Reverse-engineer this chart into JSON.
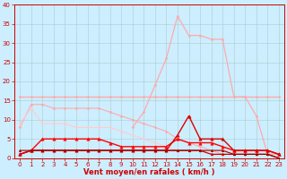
{
  "bg_color": "#cceeff",
  "grid_color": "#aacccc",
  "xlabel": "Vent moyen/en rafales ( km/h )",
  "xlabel_color": "#cc0000",
  "xlabel_fontsize": 6,
  "ylim": [
    0,
    40
  ],
  "xlim": [
    -0.5,
    23.5
  ],
  "yticks": [
    0,
    5,
    10,
    15,
    20,
    25,
    30,
    35,
    40
  ],
  "xticks": [
    0,
    1,
    2,
    3,
    4,
    5,
    6,
    7,
    8,
    9,
    10,
    11,
    12,
    13,
    14,
    15,
    16,
    17,
    18,
    19,
    20,
    21,
    22,
    23
  ],
  "lines": [
    {
      "x": [
        0,
        1,
        2,
        3,
        4,
        5,
        6,
        7,
        8,
        9,
        10,
        11,
        12,
        13,
        14,
        15,
        16,
        17,
        18,
        19,
        20,
        21,
        22,
        23
      ],
      "y": [
        8,
        14,
        14,
        13,
        13,
        13,
        13,
        13,
        12,
        11,
        10,
        9,
        8,
        7,
        5,
        4,
        3,
        2,
        1,
        1,
        1,
        1,
        1,
        1
      ],
      "color": "#ffaaaa",
      "lw": 0.8,
      "marker": "D",
      "ms": 1.5
    },
    {
      "x": [
        0,
        1,
        2,
        3,
        4,
        5,
        6,
        7,
        8,
        9,
        10,
        11,
        12,
        13,
        14,
        15,
        16,
        17,
        18,
        19,
        20,
        21,
        22,
        23
      ],
      "y": [
        16,
        16,
        16,
        16,
        16,
        16,
        16,
        16,
        16,
        16,
        16,
        16,
        16,
        16,
        16,
        16,
        16,
        16,
        16,
        16,
        16,
        16,
        16,
        16
      ],
      "color": "#ffaaaa",
      "lw": 1.0,
      "marker": "D",
      "ms": 1.5
    },
    {
      "x": [
        0,
        1,
        2,
        3,
        4,
        5,
        6,
        7,
        8,
        9,
        10,
        11,
        12,
        13,
        14,
        15,
        16,
        17,
        18,
        19,
        20,
        21,
        22,
        23
      ],
      "y": [
        9,
        13,
        9,
        9,
        9,
        8,
        8,
        8,
        8,
        7,
        6,
        5,
        4,
        3,
        2,
        2,
        2,
        2,
        2,
        2,
        1,
        1,
        1,
        0
      ],
      "color": "#ffcccc",
      "lw": 0.8,
      "marker": "D",
      "ms": 1.5
    },
    {
      "x": [
        10,
        11,
        12,
        13,
        14,
        15,
        16,
        17,
        18,
        19,
        20,
        21,
        22,
        23
      ],
      "y": [
        8,
        12,
        19,
        26,
        37,
        32,
        32,
        31,
        31,
        16,
        16,
        11,
        1,
        1
      ],
      "color": "#ffaaaa",
      "lw": 0.9,
      "marker": "D",
      "ms": 1.5
    },
    {
      "x": [
        0,
        1,
        2,
        3,
        4,
        5,
        6,
        7,
        8,
        9,
        10,
        11,
        12,
        13,
        14,
        15,
        16,
        17,
        18,
        19,
        20,
        21,
        22,
        23
      ],
      "y": [
        1,
        2,
        2,
        2,
        2,
        2,
        2,
        2,
        2,
        2,
        2,
        2,
        2,
        2,
        2,
        2,
        2,
        1,
        1,
        1,
        1,
        1,
        1,
        0
      ],
      "color": "#cc0000",
      "lw": 0.9,
      "marker": "^",
      "ms": 2.0
    },
    {
      "x": [
        0,
        1,
        2,
        3,
        4,
        5,
        6,
        7,
        8,
        9,
        10,
        11,
        12,
        13,
        14,
        15,
        16,
        17,
        18,
        19,
        20,
        21,
        22,
        23
      ],
      "y": [
        1,
        2,
        5,
        5,
        5,
        5,
        5,
        5,
        4,
        3,
        3,
        3,
        3,
        3,
        5,
        4,
        4,
        4,
        3,
        2,
        2,
        2,
        2,
        1
      ],
      "color": "#ff0000",
      "lw": 1.0,
      "marker": "^",
      "ms": 2.5
    },
    {
      "x": [
        0,
        1,
        2,
        3,
        4,
        5,
        6,
        7,
        8,
        9,
        10,
        11,
        12,
        13,
        14,
        15,
        16,
        17,
        18,
        19,
        20,
        21,
        22,
        23
      ],
      "y": [
        1,
        2,
        2,
        2,
        2,
        2,
        2,
        2,
        2,
        2,
        2,
        2,
        2,
        2,
        6,
        11,
        5,
        5,
        5,
        2,
        2,
        2,
        2,
        1
      ],
      "color": "#dd0000",
      "lw": 1.0,
      "marker": "^",
      "ms": 2.5
    },
    {
      "x": [
        0,
        1,
        2,
        3,
        4,
        5,
        6,
        7,
        8,
        9,
        10,
        11,
        12,
        13,
        14,
        15,
        16,
        17,
        18,
        19,
        20,
        21,
        22,
        23
      ],
      "y": [
        2,
        2,
        2,
        2,
        2,
        2,
        2,
        2,
        2,
        2,
        2,
        2,
        2,
        2,
        2,
        2,
        2,
        2,
        2,
        1,
        1,
        1,
        1,
        0
      ],
      "color": "#990000",
      "lw": 0.8,
      "marker": "^",
      "ms": 1.8
    }
  ],
  "tick_fontsize": 5,
  "tick_color": "#cc0000"
}
